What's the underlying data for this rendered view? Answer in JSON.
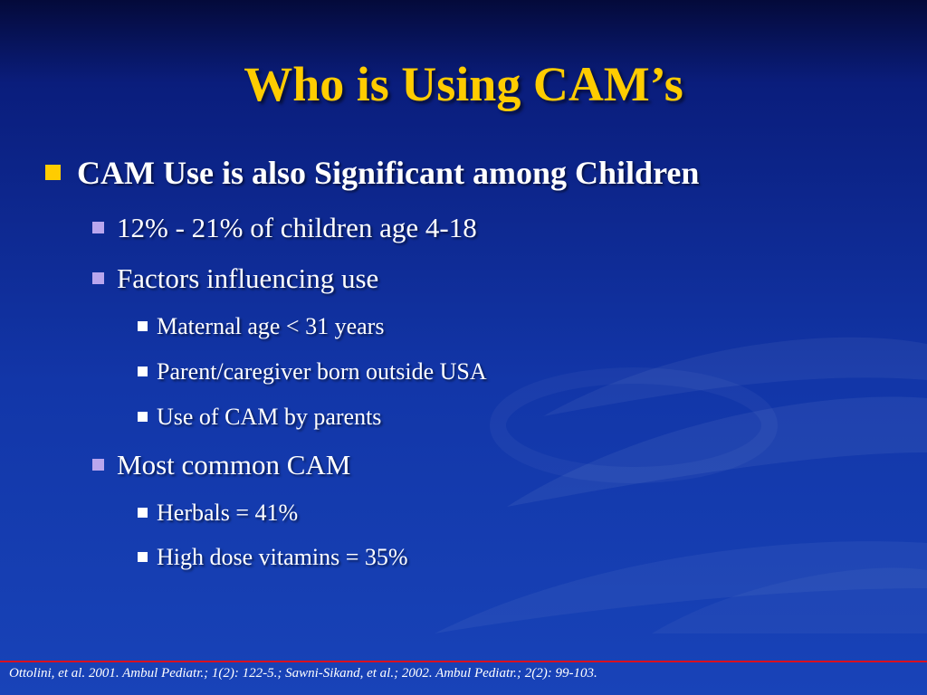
{
  "slide": {
    "title": "Who is Using CAM’s",
    "bullets": {
      "main": "CAM Use is also Significant among Children",
      "age_range": "12% - 21% of children age 4-18",
      "factors": "Factors influencing use",
      "factor_items": [
        "Maternal age < 31 years",
        "Parent/caregiver born outside USA",
        "Use of CAM by parents"
      ],
      "most_common": "Most common CAM",
      "common_items": [
        "Herbals = 41%",
        "High dose vitamins = 35%"
      ]
    },
    "footer": "Ottolini, et al. 2001. Ambul Pediatr.; 1(2): 122-5.; Sawni-Sikand, et al.; 2002. Ambul Pediatr.; 2(2): 99-103."
  },
  "colors": {
    "background_top": "#040a3a",
    "background_bottom": "#1843b8",
    "title": "#ffcc00",
    "level1_bullet": "#ffcc00",
    "level2_bullet": "#b9a6ee",
    "level3_bullet": "#ffffff",
    "footer_rule": "#d81020"
  }
}
